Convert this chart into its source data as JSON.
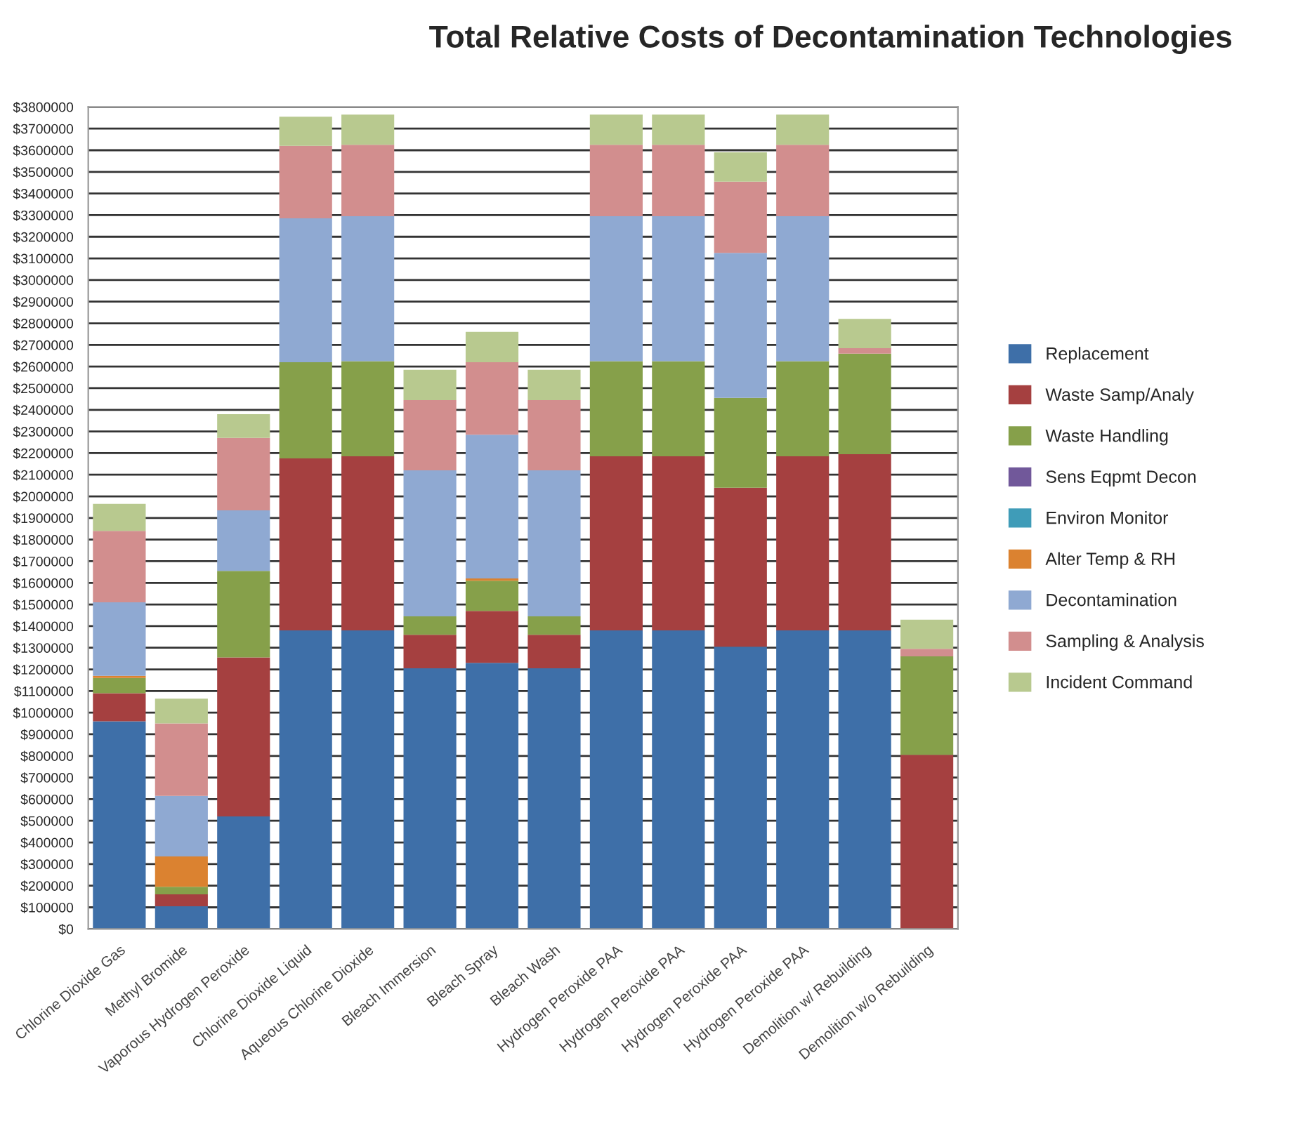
{
  "chart_data": {
    "type": "bar",
    "stacked": true,
    "title": "Total Relative Costs of Decontamination Technologies",
    "categories": [
      "Chlorine Dioxide Gas",
      "Methyl Bromide",
      "Vaporous Hydrogen Peroxide",
      "Chlorine Dioxide Liquid",
      "Aqueous Chlorine Dioxide",
      "Bleach Immersion",
      "Bleach Spray",
      "Bleach Wash",
      "Hydrogen Peroxide PAA",
      "Hydrogen Peroxide PAA",
      "Hydrogen Peroxide PAA",
      "Hydrogen Peroxide PAA",
      "Demolition w/ Rebuilding",
      "Demolition w/o Rebuilding"
    ],
    "series": [
      {
        "name": "Replacement",
        "color": "#3e6fa8",
        "values": [
          960000,
          105000,
          520000,
          1380000,
          1380000,
          1205000,
          1230000,
          1205000,
          1380000,
          1380000,
          1305000,
          1380000,
          1380000,
          0
        ]
      },
      {
        "name": "Waste Samp/Analy",
        "color": "#a54040",
        "values": [
          130000,
          55000,
          735000,
          795000,
          805000,
          155000,
          240000,
          155000,
          805000,
          805000,
          735000,
          805000,
          815000,
          805000
        ]
      },
      {
        "name": "Waste Handling",
        "color": "#86a04a",
        "values": [
          70000,
          35000,
          400000,
          445000,
          440000,
          85000,
          140000,
          85000,
          440000,
          440000,
          415000,
          440000,
          465000,
          455000
        ]
      },
      {
        "name": "Sens Eqpmt Decon",
        "color": "#71589a",
        "values": [
          0,
          0,
          0,
          0,
          0,
          0,
          0,
          0,
          0,
          0,
          0,
          0,
          0,
          0
        ]
      },
      {
        "name": "Environ Monitor",
        "color": "#3f9cb8",
        "values": [
          0,
          0,
          0,
          0,
          0,
          0,
          0,
          0,
          0,
          0,
          0,
          0,
          0,
          0
        ]
      },
      {
        "name": "Alter Temp & RH",
        "color": "#db8230",
        "values": [
          10000,
          140000,
          0,
          0,
          0,
          0,
          10000,
          0,
          0,
          0,
          0,
          0,
          0,
          0
        ]
      },
      {
        "name": "Decontamination",
        "color": "#8fa9d2",
        "values": [
          340000,
          280000,
          280000,
          665000,
          670000,
          675000,
          665000,
          675000,
          670000,
          670000,
          670000,
          670000,
          0,
          0
        ]
      },
      {
        "name": "Sampling & Analysis",
        "color": "#d28e8e",
        "values": [
          330000,
          335000,
          335000,
          335000,
          330000,
          325000,
          335000,
          325000,
          330000,
          330000,
          330000,
          330000,
          25000,
          35000
        ]
      },
      {
        "name": "Incident Command",
        "color": "#b8c98f",
        "values": [
          125000,
          115000,
          110000,
          135000,
          140000,
          140000,
          140000,
          140000,
          140000,
          140000,
          135000,
          140000,
          135000,
          135000
        ]
      }
    ],
    "ylim": [
      0,
      3800000
    ],
    "yticks": [
      {
        "value": 0,
        "label": "$0"
      },
      {
        "value": 100000,
        "label": "$100000"
      },
      {
        "value": 200000,
        "label": "$200000"
      },
      {
        "value": 300000,
        "label": "$300000"
      },
      {
        "value": 400000,
        "label": "$400000"
      },
      {
        "value": 500000,
        "label": "$500000"
      },
      {
        "value": 600000,
        "label": "$600000"
      },
      {
        "value": 700000,
        "label": "$700000"
      },
      {
        "value": 800000,
        "label": "$800000"
      },
      {
        "value": 900000,
        "label": "$900000"
      },
      {
        "value": 1000000,
        "label": "$1000000"
      },
      {
        "value": 1100000,
        "label": "$1100000"
      },
      {
        "value": 1200000,
        "label": "$1200000"
      },
      {
        "value": 1300000,
        "label": "$1300000"
      },
      {
        "value": 1400000,
        "label": "$1400000"
      },
      {
        "value": 1500000,
        "label": "$1500000"
      },
      {
        "value": 1600000,
        "label": "$1600000"
      },
      {
        "value": 1700000,
        "label": "$1700000"
      },
      {
        "value": 1800000,
        "label": "$1800000"
      },
      {
        "value": 1900000,
        "label": "$1900000"
      },
      {
        "value": 2000000,
        "label": "$2000000"
      },
      {
        "value": 2100000,
        "label": "$2100000"
      },
      {
        "value": 2200000,
        "label": "$2200000"
      },
      {
        "value": 2300000,
        "label": "$2300000"
      },
      {
        "value": 2400000,
        "label": "$2400000"
      },
      {
        "value": 2500000,
        "label": "$2500000"
      },
      {
        "value": 2600000,
        "label": "$2600000"
      },
      {
        "value": 2700000,
        "label": "$2700000"
      },
      {
        "value": 2800000,
        "label": "$2800000"
      },
      {
        "value": 2900000,
        "label": "$2900000"
      },
      {
        "value": 3000000,
        "label": "$3000000"
      },
      {
        "value": 3100000,
        "label": "$3100000"
      },
      {
        "value": 3200000,
        "label": "$3200000"
      },
      {
        "value": 3300000,
        "label": "$3300000"
      },
      {
        "value": 3400000,
        "label": "$3400000"
      },
      {
        "value": 3500000,
        "label": "$3500000"
      },
      {
        "value": 3600000,
        "label": "$3600000"
      },
      {
        "value": 3700000,
        "label": "$3700000"
      },
      {
        "value": 3800000,
        "label": "$3800000"
      }
    ],
    "grid": "y",
    "legend": "right"
  }
}
